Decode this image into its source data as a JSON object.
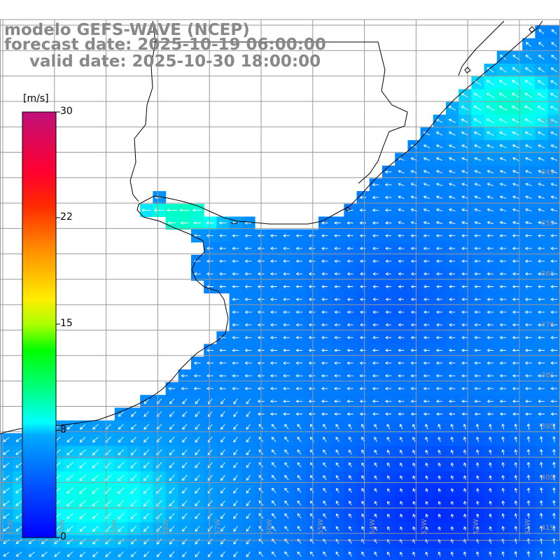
{
  "map": {
    "title_model": "modelo GEFS-WAVE (NCEP)",
    "title_forecast": "forecast date: 2025-10-19 06:00:00",
    "title_valid": "valid date: 2025-10-30 18:00:00",
    "variable": "wind speed and direction",
    "lat_labels": [
      "33S",
      "34S",
      "35S",
      "36S",
      "37S",
      "38S",
      "39S",
      "40S",
      "41S"
    ],
    "lon_labels": [
      "61W",
      "60W",
      "59W",
      "58W",
      "57W",
      "56W",
      "55W",
      "54W",
      "53W",
      "52W",
      "51W"
    ],
    "colors": {
      "grid": "#9a9a9a",
      "coast": "#000000",
      "land": "#ffffff",
      "label": "#999999"
    }
  },
  "colorbar": {
    "unit": "[m/s]",
    "ticks": [
      "30",
      "22",
      "15",
      "8",
      "0"
    ],
    "range": [
      0,
      30
    ],
    "colors": [
      "#0000ff",
      "#0096ff",
      "#00ffff",
      "#00ff00",
      "#ffff00",
      "#ff8000",
      "#ff0000",
      "#c00080"
    ]
  }
}
